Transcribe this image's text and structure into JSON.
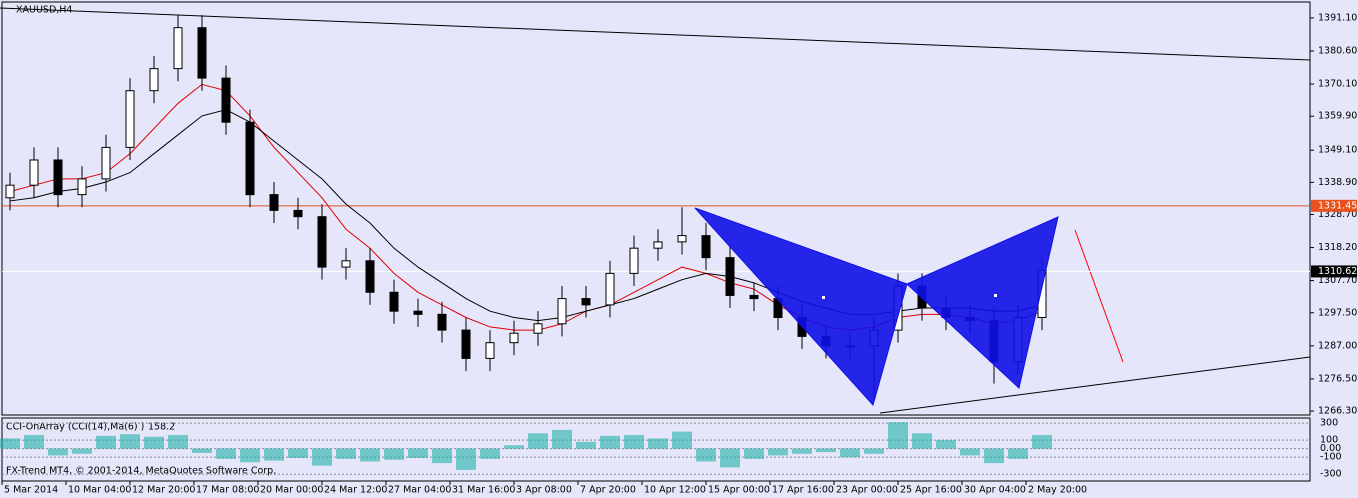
{
  "chart_data": [
    {
      "type": "candlestick",
      "title": "XAUUSD,H4",
      "footer": "FX-Trend MT4, © 2001-2014, MetaQuotes Software Corp.",
      "x_labels": [
        "5 Mar 2014",
        "10 Mar 04:00",
        "12 Mar 20:00",
        "17 Mar 08:00",
        "20 Mar 00:00",
        "24 Mar 12:00",
        "27 Mar 04:00",
        "31 Mar 16:00",
        "3 Apr 08:00",
        "7 Apr 20:00",
        "10 Apr 12:00",
        "15 Apr 00:00",
        "17 Apr 16:00",
        "23 Apr 00:00",
        "25 Apr 16:00",
        "30 Apr 04:00",
        "2 May 20:00"
      ],
      "open": [
        1334,
        1338,
        1346,
        1335,
        1340,
        1350,
        1368,
        1375,
        1388,
        1372,
        1358,
        1335,
        1330,
        1328,
        1312,
        1314,
        1304,
        1298,
        1297,
        1292,
        1283,
        1288,
        1291,
        1294,
        1302,
        1300,
        1310,
        1318,
        1320,
        1322,
        1315,
        1303,
        1302,
        1296,
        1290,
        1287,
        1287,
        1292,
        1306,
        1299,
        1296,
        1295,
        1282,
        1296
      ],
      "high": [
        1342,
        1350,
        1350,
        1344,
        1354,
        1372,
        1379,
        1392,
        1392,
        1376,
        1362,
        1339,
        1334,
        1332,
        1318,
        1318,
        1308,
        1302,
        1301,
        1296,
        1292,
        1295,
        1298,
        1306,
        1306,
        1314,
        1322,
        1324,
        1331,
        1326,
        1319,
        1307,
        1306,
        1300,
        1294,
        1291,
        1296,
        1310,
        1310,
        1303,
        1300,
        1299,
        1300,
        1315
      ],
      "low": [
        1330,
        1334,
        1331,
        1331,
        1336,
        1346,
        1364,
        1371,
        1368,
        1354,
        1331,
        1326,
        1324,
        1308,
        1308,
        1300,
        1294,
        1293,
        1288,
        1279,
        1279,
        1284,
        1287,
        1290,
        1296,
        1296,
        1306,
        1314,
        1316,
        1311,
        1299,
        1298,
        1292,
        1286,
        1283,
        1283,
        1270,
        1288,
        1295,
        1292,
        1291,
        1275,
        1278,
        1292
      ],
      "close": [
        1338,
        1346,
        1335,
        1340,
        1350,
        1368,
        1375,
        1388,
        1372,
        1358,
        1335,
        1330,
        1328,
        1312,
        1314,
        1304,
        1298,
        1297,
        1292,
        1283,
        1288,
        1291,
        1294,
        1302,
        1300,
        1310,
        1318,
        1320,
        1322,
        1315,
        1303,
        1302,
        1296,
        1290,
        1287,
        1287,
        1292,
        1306,
        1299,
        1296,
        1295,
        1282,
        1296,
        1311
      ],
      "moving_averages": [
        {
          "color": "#e00000",
          "values": [
            1336,
            1338,
            1340,
            1340,
            1342,
            1348,
            1356,
            1364,
            1370,
            1368,
            1360,
            1350,
            1342,
            1334,
            1324,
            1318,
            1310,
            1304,
            1300,
            1296,
            1293,
            1292,
            1292,
            1294,
            1298,
            1300,
            1304,
            1308,
            1312,
            1310,
            1307,
            1305,
            1300,
            1296,
            1293,
            1292,
            1293,
            1296,
            1297,
            1297,
            1296,
            1294,
            1295,
            1298
          ]
        },
        {
          "color": "#000000",
          "values": [
            1333,
            1334,
            1336,
            1337,
            1339,
            1342,
            1348,
            1354,
            1360,
            1362,
            1358,
            1352,
            1346,
            1340,
            1332,
            1326,
            1318,
            1312,
            1307,
            1302,
            1298,
            1296,
            1295,
            1296,
            1298,
            1300,
            1302,
            1305,
            1308,
            1310,
            1309,
            1307,
            1304,
            1301,
            1299,
            1297,
            1297,
            1298,
            1299,
            1299,
            1299,
            1298,
            1298,
            1300
          ]
        }
      ],
      "price_lines": [
        {
          "value": 1331.45,
          "color": "#e8501e"
        },
        {
          "value": 1310.62,
          "color": "#ffffff"
        }
      ],
      "ylim": [
        1265.04,
        1396.16
      ],
      "yticks": [
        {
          "value": 1391.1,
          "label": "1391.10"
        },
        {
          "value": 1380.6,
          "label": "1380.60"
        },
        {
          "value": 1370.1,
          "label": "1370.10"
        },
        {
          "value": 1359.9,
          "label": "1359.90"
        },
        {
          "value": 1349.1,
          "label": "1349.10"
        },
        {
          "value": 1338.9,
          "label": "1338.90"
        },
        {
          "value": 1328.7,
          "label": "1328.70"
        },
        {
          "value": 1318.2,
          "label": "1318.20"
        },
        {
          "value": 1307.7,
          "label": "1307.70"
        },
        {
          "value": 1297.5,
          "label": "1297.50"
        },
        {
          "value": 1287,
          "label": "1287.00"
        },
        {
          "value": 1276.5,
          "label": "1276.50"
        },
        {
          "value": 1266.3,
          "label": "1266.30"
        }
      ]
    },
    {
      "type": "bar",
      "title": "CCI-OnArray (CCI(14),Ma(6) )",
      "last_value": 158.2,
      "color": "#20b2aa",
      "values": [
        120,
        160,
        -80,
        -60,
        150,
        170,
        140,
        160,
        -50,
        -120,
        -160,
        -140,
        -110,
        -200,
        -120,
        -150,
        -130,
        -110,
        -170,
        -250,
        -120,
        40,
        180,
        220,
        80,
        150,
        160,
        120,
        200,
        -150,
        -220,
        -120,
        -80,
        -60,
        -40,
        -100,
        -60,
        310,
        180,
        100,
        -80,
        -170,
        -120,
        160
      ],
      "ylim": [
        -380,
        360
      ],
      "yticks": [
        300,
        100,
        {
          "value": 0,
          "label": "0.00"
        },
        -100,
        -300
      ]
    }
  ]
}
